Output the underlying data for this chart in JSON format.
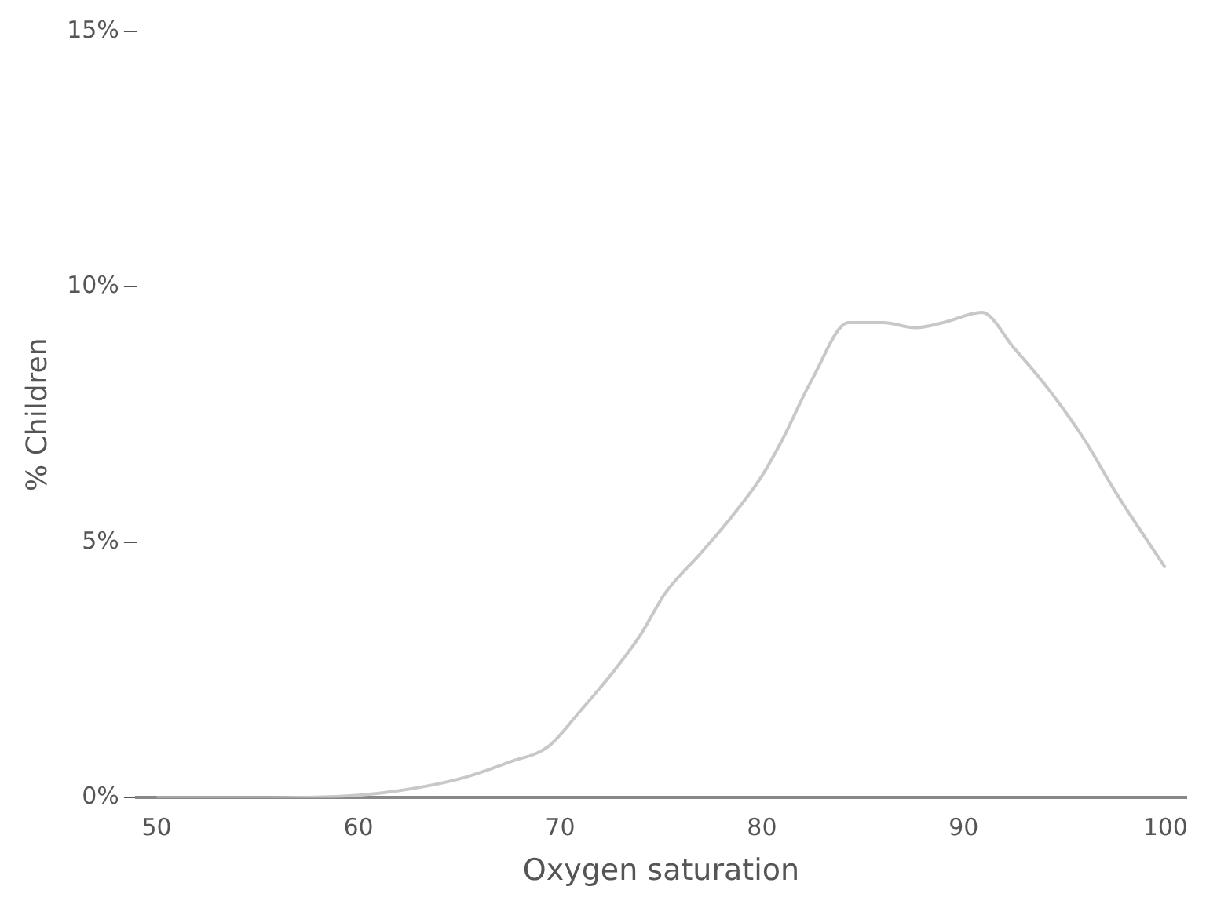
{
  "chart_data": {
    "type": "line",
    "xlabel": "Oxygen saturation",
    "ylabel": "% Children",
    "x": [
      50,
      55,
      60,
      63,
      65.3,
      67.5,
      69.4,
      71,
      72.7,
      74,
      75.2,
      77,
      78.5,
      80,
      81,
      82.5,
      84.3,
      86,
      87.6,
      89,
      90.9,
      92.5,
      94.2,
      96,
      97.5,
      100
    ],
    "series": [
      {
        "color": "#c8c8c8",
        "values": [
          0,
          0,
          0.05,
          0.2,
          0.4,
          0.7,
          1,
          1.7,
          2.5,
          3.2,
          4,
          4.8,
          5.5,
          6.3,
          7,
          8.2,
          9.3,
          9.3,
          9.2,
          9.3,
          9.5,
          8.8,
          8,
          7,
          6,
          4.5
        ]
      }
    ],
    "xlim": [
      49,
      101
    ],
    "xticks": [
      50,
      60,
      70,
      80,
      90,
      100
    ],
    "ylim": [
      0,
      15
    ],
    "yticks": [
      {
        "value": 0,
        "label": "0%"
      },
      {
        "value": 5,
        "label": "5%"
      },
      {
        "value": 10,
        "label": "10%"
      },
      {
        "value": 15,
        "label": "15%"
      }
    ],
    "grid": false,
    "legend": false,
    "marker": "none",
    "line_style": "solid"
  }
}
